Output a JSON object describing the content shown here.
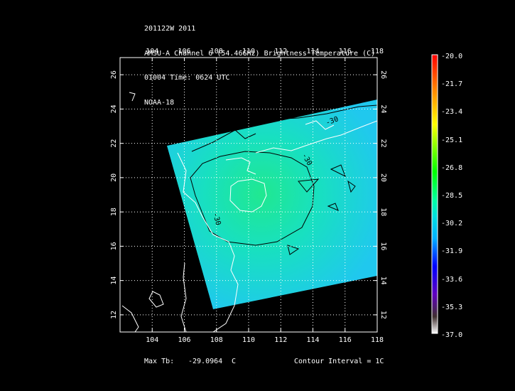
{
  "header": {
    "line1": "201122W 2011",
    "line2": "AMSU-A Channel 6 (54.46GHz) Brightness Temperature (C)",
    "line3": "01004 Time: 0624 UTC",
    "line4": "NOAA-18"
  },
  "map": {
    "lon_ticks": [
      "104",
      "106",
      "108",
      "110",
      "112",
      "114",
      "116",
      "118"
    ],
    "lat_ticks": [
      "12",
      "14",
      "16",
      "18",
      "20",
      "22",
      "24",
      "26"
    ],
    "lon_range": [
      102,
      118
    ],
    "lat_range": [
      11,
      27
    ],
    "contour_labels": [
      "-30",
      "-30",
      "-30"
    ]
  },
  "colorbar": {
    "labels": [
      "-20.0",
      "-21.7",
      "-23.4",
      "-25.1",
      "-26.8",
      "-28.5",
      "-30.2",
      "-31.9",
      "-33.6",
      "-35.3",
      "-37.0"
    ],
    "colors": [
      "#ff0000",
      "#ff8000",
      "#ffff00",
      "#00ff00",
      "#00ffc0",
      "#00c0ff",
      "#0000ff",
      "#6000c0",
      "#ffffff"
    ]
  },
  "footer": {
    "max_tb_label": "Max Tb:",
    "max_tb_value": "-29.0964",
    "max_tb_unit": "C",
    "contour_interval": "Contour Interval = 1C"
  }
}
